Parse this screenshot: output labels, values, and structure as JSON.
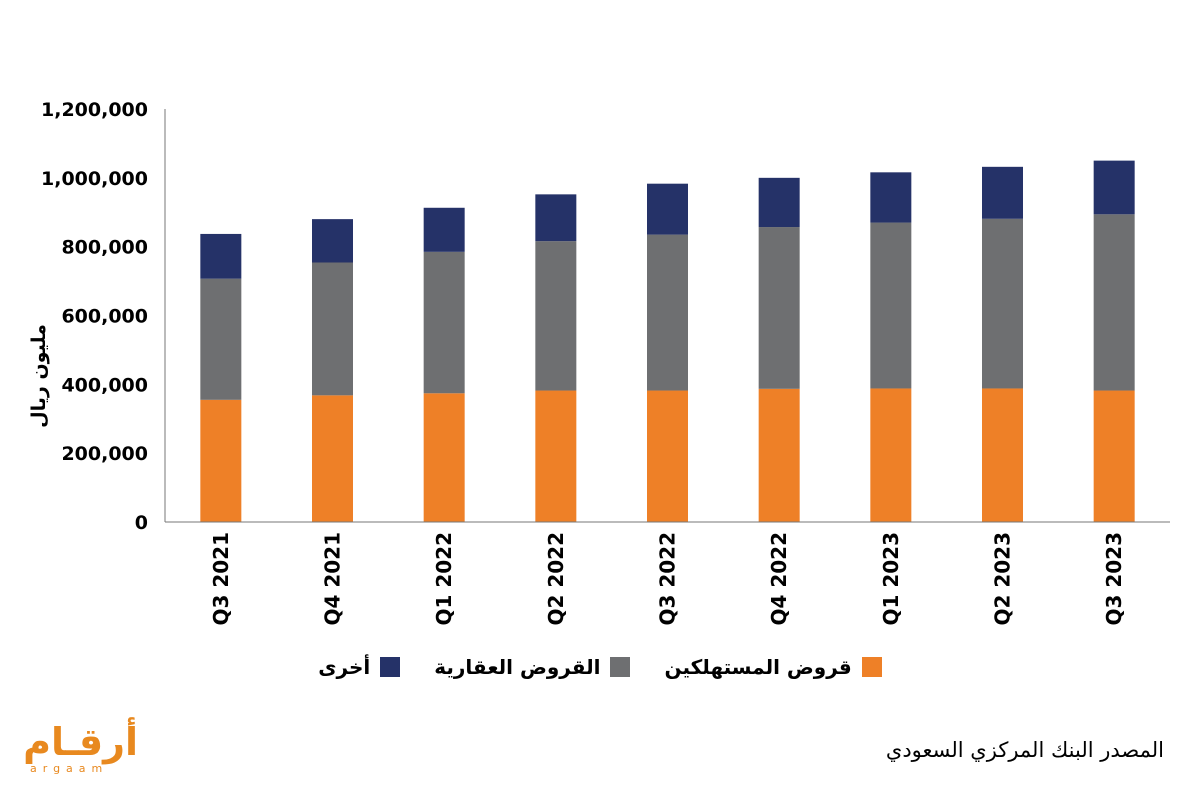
{
  "chart_data": {
    "type": "stacked-bar",
    "categories": [
      "Q3 2021",
      "Q4 2021",
      "Q1 2022",
      "Q2 2022",
      "Q3 2022",
      "Q4 2022",
      "Q1 2023",
      "Q2 2023",
      "Q3 2023"
    ],
    "series": [
      {
        "name": "قروض المستهلكين",
        "color": "#ee8027",
        "values": [
          355000,
          368000,
          374000,
          382000,
          382000,
          387000,
          388000,
          388000,
          382000
        ]
      },
      {
        "name": "القروض العقارية",
        "color": "#6e6f71",
        "values": [
          352000,
          386000,
          411000,
          434000,
          453000,
          470000,
          482000,
          493000,
          512000
        ]
      },
      {
        "name": "أخرى",
        "color": "#253268",
        "values": [
          130000,
          126000,
          128000,
          136000,
          148000,
          143000,
          146000,
          151000,
          156000
        ]
      }
    ],
    "ylabel": "مليون ريال",
    "ylim": [
      0,
      1200000
    ],
    "yticks": [
      0,
      200000,
      400000,
      600000,
      800000,
      1000000,
      1200000
    ],
    "ytick_labels": [
      "0",
      "200,000",
      "400,000",
      "600,000",
      "800,000",
      "1,000,000",
      "1,200,000"
    ],
    "grid": false,
    "legend_position": "bottom"
  },
  "source": "المصدر البنك المركزي السعودي",
  "logo": {
    "arabic": "أرقـام",
    "latin": "argaam"
  }
}
